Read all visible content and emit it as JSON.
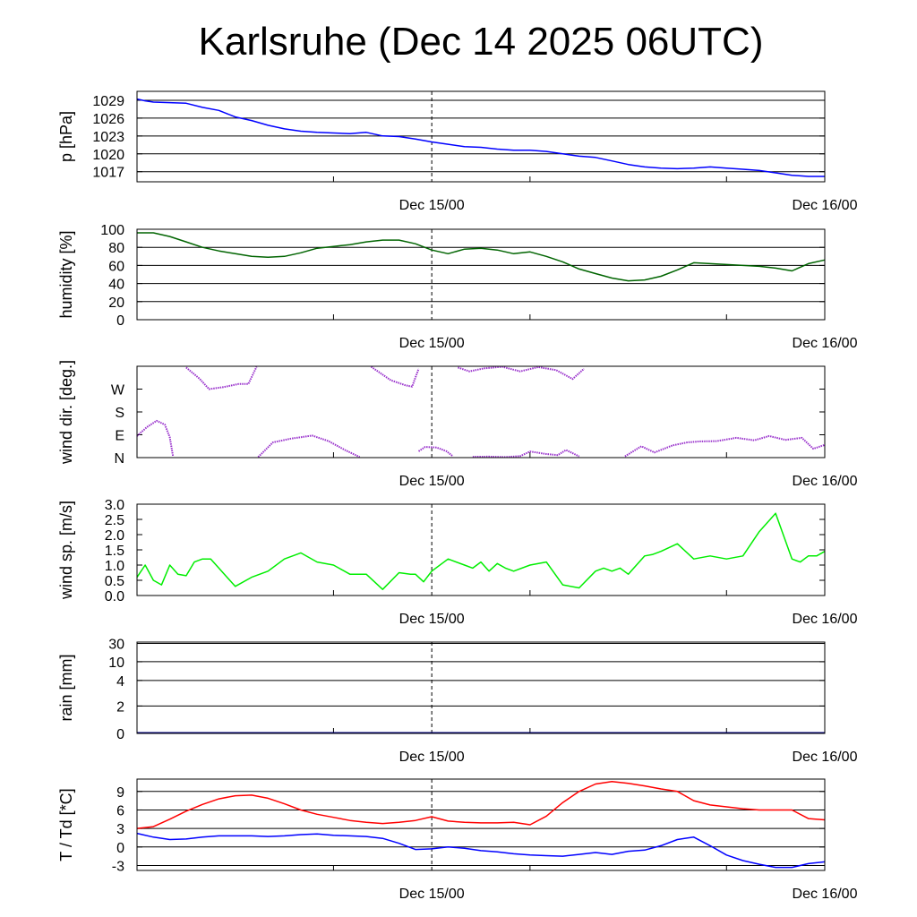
{
  "chart_data": {
    "title": "Karlsruhe (Dec 14 2025 06UTC)",
    "x_tick_labels": [
      "Dec 15/00",
      "Dec 16/00"
    ],
    "x_range_hours": [
      0,
      42
    ],
    "marker_line_label": "Dec 15/00",
    "panels": [
      {
        "id": "pressure",
        "type": "line",
        "ylabel": "p [hPa]",
        "ylim": [
          1015.3,
          1030.5
        ],
        "yticks": [
          1017,
          1020,
          1023,
          1026,
          1029
        ],
        "ytick_labels": [
          "1017",
          "1020",
          "1023",
          "1026",
          "1029"
        ],
        "grid": true,
        "series": [
          {
            "color": "#0000ff",
            "x": [
              0,
              0.5,
              1,
              2,
              3,
              4,
              5,
              6,
              7,
              8,
              9,
              10,
              11,
              12,
              13,
              14,
              15,
              16,
              17,
              18,
              19,
              20,
              21,
              22,
              23,
              24,
              25,
              26,
              27,
              28,
              29,
              30,
              31,
              32,
              33,
              34,
              35,
              36,
              37,
              38,
              39,
              40,
              41,
              42
            ],
            "y": [
              1029.2,
              1028.9,
              1028.7,
              1028.6,
              1028.5,
              1027.8,
              1027.3,
              1026.2,
              1025.6,
              1024.8,
              1024.2,
              1023.8,
              1023.6,
              1023.5,
              1023.4,
              1023.6,
              1023.0,
              1022.9,
              1022.5,
              1022.0,
              1021.6,
              1021.2,
              1021.1,
              1020.8,
              1020.6,
              1020.6,
              1020.4,
              1020.0,
              1019.6,
              1019.4,
              1018.8,
              1018.2,
              1017.8,
              1017.6,
              1017.5,
              1017.6,
              1017.8,
              1017.6,
              1017.4,
              1017.2,
              1016.8,
              1016.4,
              1016.2,
              1016.2
            ]
          }
        ]
      },
      {
        "id": "humidity",
        "type": "line",
        "ylabel": "humidity [%]",
        "ylim": [
          0,
          100
        ],
        "yticks": [
          0,
          20,
          40,
          60,
          80,
          100
        ],
        "ytick_labels": [
          "0",
          "20",
          "40",
          "60",
          "80",
          "100"
        ],
        "grid": true,
        "series": [
          {
            "color": "#006400",
            "x": [
              0,
              1,
              2,
              3,
              4,
              5,
              6,
              7,
              8,
              9,
              10,
              11,
              12,
              13,
              14,
              15,
              16,
              17,
              18,
              19,
              20,
              21,
              22,
              23,
              24,
              25,
              26,
              27,
              28,
              29,
              30,
              31,
              32,
              33,
              34,
              35,
              36,
              37,
              38,
              39,
              40,
              41,
              42
            ],
            "y": [
              96,
              96,
              92,
              86,
              80,
              76,
              73,
              70,
              69,
              70,
              74,
              79,
              81,
              83,
              86,
              88,
              88,
              84,
              77,
              73,
              78,
              79,
              77,
              73,
              75,
              70,
              64,
              56,
              51,
              46,
              43,
              44,
              48,
              55,
              63,
              62,
              61,
              60,
              59,
              57,
              54,
              62,
              66
            ]
          }
        ]
      },
      {
        "id": "wind_direction",
        "type": "scatter",
        "ylabel": "wind dir. [deg.]",
        "ylim": [
          0,
          360
        ],
        "yticks": [
          0,
          90,
          180,
          270
        ],
        "ytick_labels": [
          "N",
          "E",
          "S",
          "W"
        ],
        "grid": false,
        "series": [
          {
            "color": "#9932cc",
            "segments": [
              {
                "x": [
                  0,
                  0.6,
                  1.2,
                  1.7,
                  2.0,
                  2.2
                ],
                "y": [
                  85,
                  120,
                  145,
                  130,
                  80,
                  5
                ]
              },
              {
                "x": [
                  3.0,
                  3.8,
                  4.4,
                  5.3,
                  6.2,
                  6.8,
                  7.3
                ],
                "y": [
                  355,
                  312,
                  270,
                  278,
                  290,
                  290,
                  358
                ]
              },
              {
                "x": [
                  7.4,
                  8.3,
                  9.4,
                  10.7,
                  11.7,
                  12.7,
                  13.6
                ],
                "y": [
                  2,
                  60,
                  75,
                  87,
                  65,
                  30,
                  2
                ]
              },
              {
                "x": [
                  14.3,
                  15.5,
                  16.4,
                  16.8,
                  17.2
                ],
                "y": [
                  358,
                  305,
                  285,
                  280,
                  350
                ]
              },
              {
                "x": [
                  17.2,
                  17.6,
                  18.3,
                  18.9,
                  19.3
                ],
                "y": [
                  25,
                  42,
                  40,
                  25,
                  5
                ]
              },
              {
                "x": [
                  19.6,
                  20.3,
                  21.2,
                  22.3,
                  23.4,
                  24.5,
                  25.6,
                  26.6,
                  27.3
                ],
                "y": [
                  355,
                  340,
                  352,
                  358,
                  340,
                  357,
                  345,
                  310,
                  350
                ]
              },
              {
                "x": [
                  20.5,
                  21.5,
                  22.5,
                  23.4,
                  24.0,
                  25.0,
                  25.7,
                  26.2,
                  27.0
                ],
                "y": [
                  3,
                  4,
                  2,
                  6,
                  24,
                  14,
                  10,
                  30,
                  5
                ]
              },
              {
                "x": [
                  29.8,
                  30.8,
                  31.6,
                  32.7,
                  33.6,
                  34.4,
                  35.4,
                  36.6,
                  37.7,
                  38.6,
                  39.6,
                  40.6,
                  41.3,
                  42
                ],
                "y": [
                  5,
                  45,
                  20,
                  48,
                  60,
                  64,
                  65,
                  78,
                  68,
                  85,
                  70,
                  78,
                  35,
                  50
                ]
              }
            ]
          }
        ]
      },
      {
        "id": "wind_speed",
        "type": "line",
        "ylabel": "wind sp. [m/s]",
        "ylim": [
          0,
          3.0
        ],
        "yticks": [
          0,
          0.5,
          1.0,
          1.5,
          2.0,
          2.5,
          3.0
        ],
        "ytick_labels": [
          "0.0",
          "0.5",
          "1.0",
          "1.5",
          "2.0",
          "2.5",
          "3.0"
        ],
        "grid": false,
        "series": [
          {
            "color": "#00ee00",
            "x": [
              0,
              0.5,
              1,
              1.5,
              2,
              2.5,
              3,
              3.5,
              4,
              4.5,
              5,
              6,
              7,
              8,
              9,
              10,
              11,
              12,
              13,
              14,
              15,
              16,
              16.7,
              17,
              17.5,
              18,
              19,
              20,
              20.5,
              21,
              21.5,
              22,
              22.5,
              23,
              24,
              25,
              26,
              27,
              28,
              28.5,
              29,
              29.5,
              30,
              31,
              31.5,
              32,
              33,
              34,
              35,
              36,
              37,
              38,
              39,
              40,
              40.5,
              41,
              41.5,
              42
            ],
            "y": [
              0.6,
              1.0,
              0.5,
              0.35,
              1.0,
              0.7,
              0.65,
              1.1,
              1.2,
              1.2,
              0.9,
              0.3,
              0.6,
              0.8,
              1.2,
              1.4,
              1.1,
              1.0,
              0.7,
              0.7,
              0.2,
              0.75,
              0.7,
              0.7,
              0.45,
              0.8,
              1.2,
              1.0,
              0.9,
              1.1,
              0.8,
              1.05,
              0.9,
              0.8,
              1.0,
              1.1,
              0.35,
              0.25,
              0.8,
              0.9,
              0.8,
              0.9,
              0.7,
              1.3,
              1.35,
              1.45,
              1.7,
              1.2,
              1.3,
              1.2,
              1.3,
              2.1,
              2.7,
              1.2,
              1.1,
              1.3,
              1.3,
              1.45
            ]
          }
        ]
      },
      {
        "id": "rain",
        "type": "line",
        "ylabel": "rain [mm]",
        "ylim": [
          0,
          30
        ],
        "yticks": [
          0,
          2,
          4,
          10,
          30
        ],
        "ytick_labels": [
          "0",
          "2",
          "4",
          "10",
          "30"
        ],
        "grid": true,
        "series": []
      },
      {
        "id": "temperature",
        "type": "line",
        "ylabel": "T / Td [*C]",
        "ylim": [
          -3.8,
          11
        ],
        "yticks": [
          -3,
          0,
          3,
          6,
          9
        ],
        "ytick_labels": [
          "-3",
          "0",
          "3",
          "6",
          "9"
        ],
        "grid": true,
        "series": [
          {
            "color": "#ff0000",
            "x": [
              0,
              1,
              2,
              3,
              4,
              5,
              6,
              7,
              8,
              9,
              10,
              11,
              12,
              13,
              14,
              15,
              16,
              17,
              18,
              19,
              20,
              21,
              22,
              23,
              24,
              25,
              26,
              27,
              28,
              29,
              30,
              31,
              32,
              33,
              34,
              35,
              36,
              37,
              38,
              39,
              40,
              41,
              42
            ],
            "y": [
              3.0,
              3.3,
              4.5,
              5.8,
              6.9,
              7.8,
              8.3,
              8.4,
              7.9,
              7.0,
              6.0,
              5.3,
              4.8,
              4.3,
              4.0,
              3.8,
              4.0,
              4.3,
              4.9,
              4.2,
              4.0,
              3.9,
              3.9,
              4.0,
              3.6,
              5.0,
              7.2,
              9.0,
              10.2,
              10.6,
              10.3,
              9.9,
              9.4,
              9.0,
              7.5,
              6.8,
              6.5,
              6.2,
              6.0,
              6.0,
              6.0,
              4.6,
              4.4
            ]
          },
          {
            "color": "#0000ff",
            "x": [
              0,
              1,
              2,
              3,
              4,
              5,
              6,
              7,
              8,
              9,
              10,
              11,
              12,
              13,
              14,
              15,
              16,
              17,
              18,
              19,
              20,
              21,
              22,
              23,
              24,
              25,
              26,
              27,
              28,
              29,
              30,
              31,
              32,
              33,
              34,
              35,
              36,
              37,
              38,
              39,
              40,
              41,
              42
            ],
            "y": [
              2.2,
              1.6,
              1.2,
              1.3,
              1.6,
              1.8,
              1.8,
              1.8,
              1.7,
              1.8,
              2.0,
              2.1,
              1.9,
              1.8,
              1.7,
              1.4,
              0.6,
              -0.4,
              -0.3,
              0.0,
              -0.2,
              -0.6,
              -0.8,
              -1.1,
              -1.3,
              -1.4,
              -1.5,
              -1.2,
              -0.9,
              -1.2,
              -0.7,
              -0.5,
              0.2,
              1.2,
              1.6,
              0.2,
              -1.3,
              -2.2,
              -2.8,
              -3.3,
              -3.3,
              -2.7,
              -2.4
            ]
          }
        ]
      }
    ]
  }
}
